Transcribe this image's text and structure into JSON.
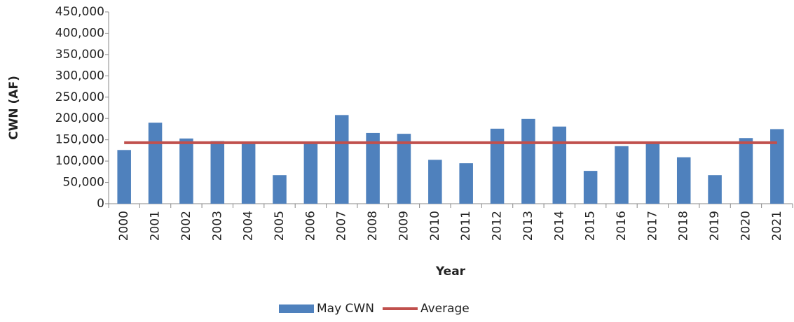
{
  "chart_data": {
    "type": "bar",
    "x_label": "Year",
    "y_label": "CWN (AF)",
    "categories": [
      "2000",
      "2001",
      "2002",
      "2003",
      "2004",
      "2005",
      "2006",
      "2007",
      "2008",
      "2009",
      "2010",
      "2011",
      "2012",
      "2013",
      "2014",
      "2015",
      "2016",
      "2017",
      "2018",
      "2019",
      "2020",
      "2021"
    ],
    "series": [
      {
        "name": "May CWN",
        "type": "bar",
        "color": "#4f81bd",
        "values": [
          126000,
          190000,
          153000,
          147000,
          145000,
          67000,
          146000,
          208000,
          166000,
          164000,
          103000,
          95000,
          176000,
          199000,
          181000,
          77000,
          135000,
          146000,
          109000,
          67000,
          154000,
          175000
        ]
      },
      {
        "name": "Average",
        "type": "line",
        "color": "#c0504d",
        "values": [
          143000,
          143000,
          143000,
          143000,
          143000,
          143000,
          143000,
          143000,
          143000,
          143000,
          143000,
          143000,
          143000,
          143000,
          143000,
          143000,
          143000,
          143000,
          143000,
          143000,
          143000,
          143000
        ]
      }
    ],
    "ylim": [
      0,
      450000
    ],
    "yticks": [
      0,
      {
        "value": 50000,
        "label": "50,000"
      },
      {
        "value": 100000,
        "label": "100,000"
      },
      {
        "value": 150000,
        "label": "150,000"
      },
      {
        "value": 200000,
        "label": "200,000"
      },
      {
        "value": 250000,
        "label": "250,000"
      },
      {
        "value": 300000,
        "label": "300,000"
      },
      {
        "value": 350000,
        "label": "350,000"
      },
      {
        "value": 400000,
        "label": "400,000"
      },
      {
        "value": 450000,
        "label": "450,000"
      }
    ],
    "grid": false,
    "legend": "bottom"
  }
}
